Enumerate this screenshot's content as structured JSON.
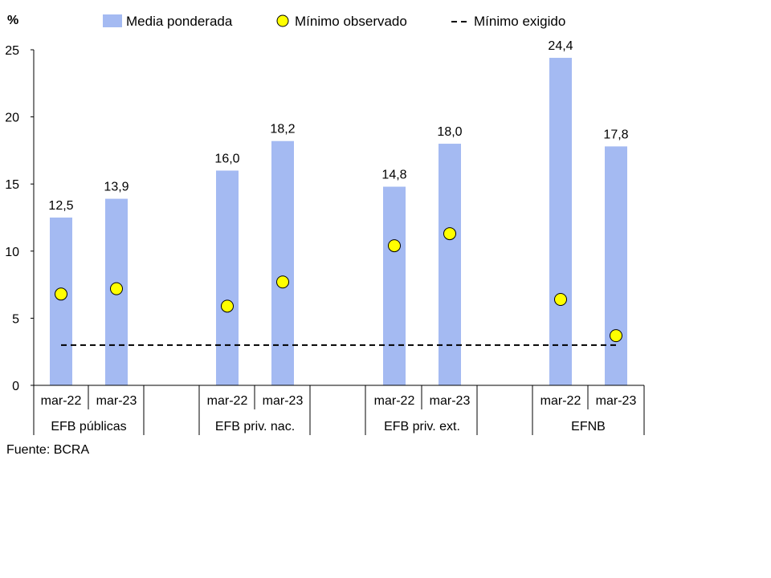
{
  "chart_data": {
    "type": "bar",
    "unit": "%",
    "ylim": [
      0,
      25
    ],
    "yticks": [
      0,
      5,
      10,
      15,
      20,
      25
    ],
    "groups": [
      "EFB públicas",
      "EFB priv. nac.",
      "EFB priv. ext.",
      "EFNB"
    ],
    "categories": [
      "mar-22",
      "mar-23"
    ],
    "series": [
      {
        "name": "Media ponderada",
        "type": "bar",
        "color": "#a4baf2",
        "values": [
          [
            12.5,
            13.9
          ],
          [
            16.0,
            18.2
          ],
          [
            14.8,
            18.0
          ],
          [
            24.4,
            17.8
          ]
        ],
        "labels": [
          [
            "12,5",
            "13,9"
          ],
          [
            "16,0",
            "18,2"
          ],
          [
            "14,8",
            "18,0"
          ],
          [
            "24,4",
            "17,8"
          ]
        ]
      },
      {
        "name": "Mínimo observado",
        "type": "scatter",
        "color": "#ffff00",
        "values": [
          [
            6.8,
            7.2
          ],
          [
            5.9,
            7.7
          ],
          [
            10.4,
            11.3
          ],
          [
            6.4,
            3.7
          ]
        ]
      },
      {
        "name": "Mínimo exigido",
        "type": "line",
        "style": "dashed",
        "value": 3
      }
    ],
    "legend_position": "top",
    "grid": false
  },
  "source": "Fuente: BCRA"
}
